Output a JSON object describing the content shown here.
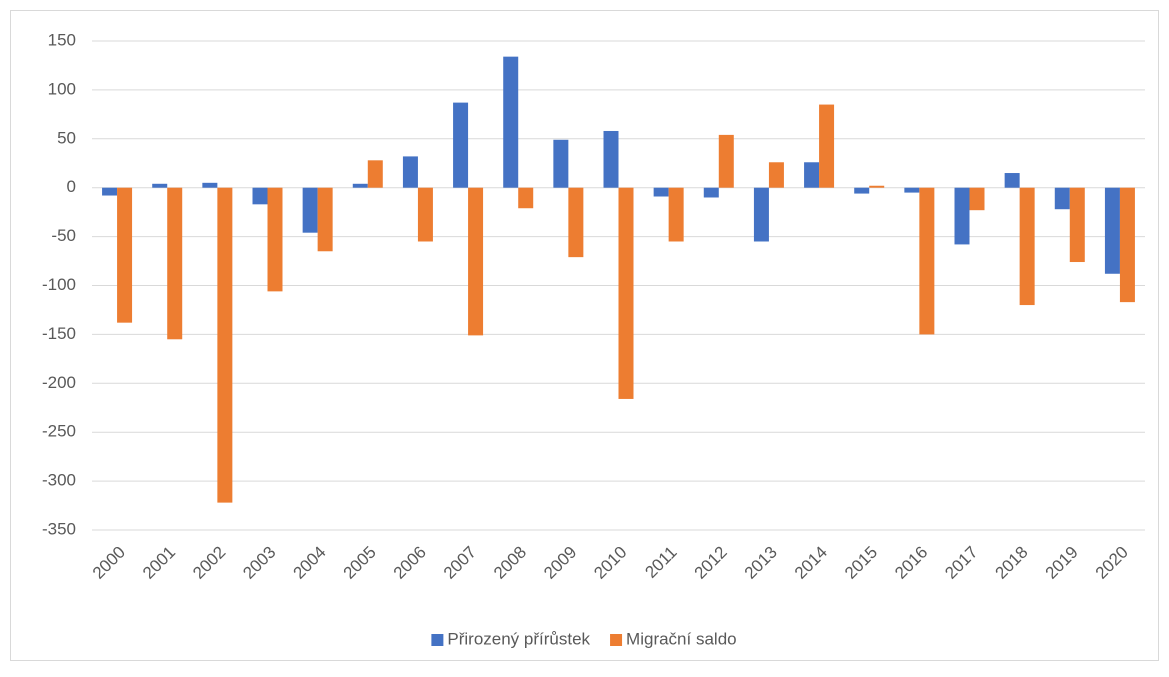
{
  "chart_data": {
    "type": "bar",
    "categories": [
      "2000",
      "2001",
      "2002",
      "2003",
      "2004",
      "2005",
      "2006",
      "2007",
      "2008",
      "2009",
      "2010",
      "2011",
      "2012",
      "2013",
      "2014",
      "2015",
      "2016",
      "2017",
      "2018",
      "2019",
      "2020"
    ],
    "series": [
      {
        "name": "Přirozený přírůstek",
        "color": "#4472c4",
        "values": [
          -8,
          4,
          5,
          -17,
          -46,
          4,
          32,
          87,
          134,
          49,
          58,
          -9,
          -10,
          -55,
          26,
          -6,
          -5,
          -58,
          15,
          -22,
          -88
        ]
      },
      {
        "name": "Migrační saldo",
        "color": "#ed7d31",
        "values": [
          -138,
          -155,
          -322,
          -106,
          -65,
          28,
          -55,
          -151,
          -21,
          -71,
          -216,
          -55,
          54,
          26,
          85,
          2,
          -150,
          -23,
          -120,
          -76,
          -117
        ]
      }
    ],
    "ylim": [
      -350,
      150
    ],
    "yticks": [
      150,
      100,
      50,
      0,
      -50,
      -100,
      -150,
      -200,
      -250,
      -300,
      -350
    ],
    "grid": true,
    "legend": "bottom"
  }
}
